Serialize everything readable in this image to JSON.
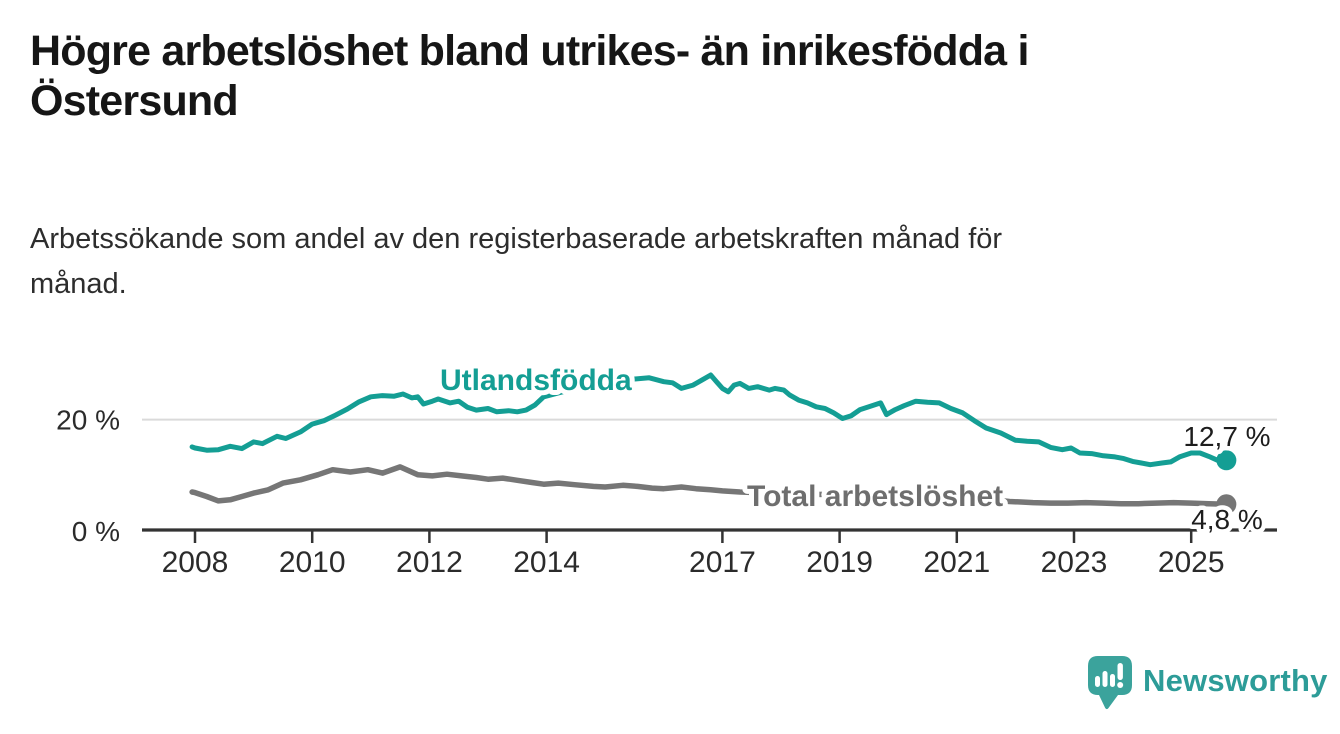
{
  "header": {
    "title_lines": [
      "Högre arbetslöshet bland utrikes- än inrikesfödda i",
      "Östersund"
    ],
    "subtitle_lines": [
      "Arbetssökande som andel av den registerbaserade arbetskraften månad för",
      "månad."
    ]
  },
  "branding": {
    "name": "Newsworthy",
    "icon": "speech-bubble-bar-chart-icon",
    "icon_color": "#3ba39c",
    "text_color": "#2d9c98"
  },
  "chart_data": {
    "type": "line",
    "unit": "%",
    "grid": "single horizontal gridline at 20 %",
    "legend_position": "inline labels on lines",
    "xlim": [
      2007.9,
      2025.7
    ],
    "ylim": [
      0,
      30
    ],
    "x_ticks": [
      {
        "label": "2008",
        "year": 2008
      },
      {
        "label": "2010",
        "year": 2010
      },
      {
        "label": "2012",
        "year": 2012
      },
      {
        "label": "2014",
        "year": 2014
      },
      {
        "label": "2017",
        "year": 2017
      },
      {
        "label": "2019",
        "year": 2019
      },
      {
        "label": "2021",
        "year": 2021
      },
      {
        "label": "2023",
        "year": 2023
      },
      {
        "label": "2025",
        "year": 2025
      }
    ],
    "y_ticks": [
      {
        "label": "0 %",
        "value": 0
      },
      {
        "label": "20 %",
        "value": 20
      }
    ],
    "series": [
      {
        "name": "Utlandsfödda",
        "color": "#149e94",
        "label_color": "#149e94",
        "end_label": "12,7 %",
        "end_value": 12.7,
        "points": [
          [
            2007.95,
            15.1
          ],
          [
            2008.0,
            14.9
          ],
          [
            2008.2,
            14.5
          ],
          [
            2008.4,
            14.6
          ],
          [
            2008.6,
            15.2
          ],
          [
            2008.8,
            14.8
          ],
          [
            2009.0,
            16.0
          ],
          [
            2009.15,
            15.7
          ],
          [
            2009.4,
            17.0
          ],
          [
            2009.55,
            16.6
          ],
          [
            2009.8,
            17.8
          ],
          [
            2010.0,
            19.2
          ],
          [
            2010.2,
            19.8
          ],
          [
            2010.4,
            20.8
          ],
          [
            2010.6,
            21.9
          ],
          [
            2010.8,
            23.2
          ],
          [
            2011.0,
            24.1
          ],
          [
            2011.2,
            24.3
          ],
          [
            2011.4,
            24.2
          ],
          [
            2011.55,
            24.6
          ],
          [
            2011.7,
            23.9
          ],
          [
            2011.8,
            24.1
          ],
          [
            2011.9,
            22.8
          ],
          [
            2012.05,
            23.3
          ],
          [
            2012.15,
            23.7
          ],
          [
            2012.35,
            23.0
          ],
          [
            2012.5,
            23.3
          ],
          [
            2012.65,
            22.2
          ],
          [
            2012.8,
            21.7
          ],
          [
            2013.0,
            22.0
          ],
          [
            2013.15,
            21.4
          ],
          [
            2013.35,
            21.6
          ],
          [
            2013.5,
            21.4
          ],
          [
            2013.65,
            21.7
          ],
          [
            2013.8,
            22.6
          ],
          [
            2013.95,
            24.1
          ],
          [
            2014.2,
            24.8
          ],
          [
            2014.5,
            25.6
          ],
          [
            2014.8,
            26.3
          ],
          [
            2015.1,
            26.8
          ],
          [
            2015.4,
            27.2
          ],
          [
            2015.75,
            27.5
          ],
          [
            2016.0,
            26.8
          ],
          [
            2016.15,
            26.6
          ],
          [
            2016.3,
            25.6
          ],
          [
            2016.5,
            26.2
          ],
          [
            2016.65,
            27.1
          ],
          [
            2016.8,
            28.0
          ],
          [
            2016.9,
            26.8
          ],
          [
            2017.0,
            25.6
          ],
          [
            2017.1,
            25.0
          ],
          [
            2017.2,
            26.2
          ],
          [
            2017.3,
            26.5
          ],
          [
            2017.45,
            25.6
          ],
          [
            2017.6,
            25.9
          ],
          [
            2017.8,
            25.3
          ],
          [
            2017.9,
            25.6
          ],
          [
            2018.05,
            25.3
          ],
          [
            2018.15,
            24.4
          ],
          [
            2018.3,
            23.5
          ],
          [
            2018.45,
            23.0
          ],
          [
            2018.6,
            22.3
          ],
          [
            2018.75,
            22.0
          ],
          [
            2018.9,
            21.2
          ],
          [
            2019.05,
            20.2
          ],
          [
            2019.2,
            20.7
          ],
          [
            2019.35,
            21.8
          ],
          [
            2019.5,
            22.3
          ],
          [
            2019.7,
            23.0
          ],
          [
            2019.8,
            20.9
          ],
          [
            2019.95,
            21.8
          ],
          [
            2020.1,
            22.5
          ],
          [
            2020.3,
            23.3
          ],
          [
            2020.5,
            23.1
          ],
          [
            2020.7,
            23.0
          ],
          [
            2020.9,
            22.0
          ],
          [
            2021.1,
            21.2
          ],
          [
            2021.3,
            19.8
          ],
          [
            2021.5,
            18.5
          ],
          [
            2021.75,
            17.6
          ],
          [
            2022.0,
            16.3
          ],
          [
            2022.2,
            16.1
          ],
          [
            2022.4,
            16.0
          ],
          [
            2022.6,
            15.0
          ],
          [
            2022.8,
            14.6
          ],
          [
            2022.95,
            14.9
          ],
          [
            2023.1,
            14.0
          ],
          [
            2023.3,
            13.9
          ],
          [
            2023.5,
            13.5
          ],
          [
            2023.7,
            13.3
          ],
          [
            2023.85,
            13.0
          ],
          [
            2024.0,
            12.5
          ],
          [
            2024.15,
            12.2
          ],
          [
            2024.3,
            11.9
          ],
          [
            2024.5,
            12.2
          ],
          [
            2024.65,
            12.4
          ],
          [
            2024.8,
            13.3
          ],
          [
            2025.0,
            14.0
          ],
          [
            2025.15,
            14.0
          ],
          [
            2025.3,
            13.4
          ],
          [
            2025.45,
            12.7
          ],
          [
            2025.55,
            12.4
          ],
          [
            2025.6,
            12.7
          ]
        ]
      },
      {
        "name": "Total arbetslöshet",
        "color": "#767676",
        "label_color": "#6e6e6e",
        "end_label": "4,8 %",
        "end_value": 4.8,
        "points": [
          [
            2007.95,
            7.0
          ],
          [
            2008.0,
            6.9
          ],
          [
            2008.2,
            6.2
          ],
          [
            2008.4,
            5.4
          ],
          [
            2008.6,
            5.6
          ],
          [
            2008.8,
            6.2
          ],
          [
            2009.0,
            6.8
          ],
          [
            2009.25,
            7.4
          ],
          [
            2009.5,
            8.6
          ],
          [
            2009.8,
            9.2
          ],
          [
            2010.1,
            10.1
          ],
          [
            2010.35,
            11.0
          ],
          [
            2010.65,
            10.6
          ],
          [
            2010.95,
            11.0
          ],
          [
            2011.2,
            10.4
          ],
          [
            2011.5,
            11.5
          ],
          [
            2011.8,
            10.1
          ],
          [
            2012.05,
            9.9
          ],
          [
            2012.3,
            10.2
          ],
          [
            2012.55,
            9.9
          ],
          [
            2012.8,
            9.6
          ],
          [
            2013.0,
            9.3
          ],
          [
            2013.25,
            9.5
          ],
          [
            2013.5,
            9.1
          ],
          [
            2013.75,
            8.7
          ],
          [
            2013.95,
            8.4
          ],
          [
            2014.2,
            8.6
          ],
          [
            2014.5,
            8.3
          ],
          [
            2014.8,
            8.0
          ],
          [
            2015.0,
            7.9
          ],
          [
            2015.3,
            8.2
          ],
          [
            2015.55,
            8.0
          ],
          [
            2015.8,
            7.7
          ],
          [
            2016.0,
            7.6
          ],
          [
            2016.3,
            7.9
          ],
          [
            2016.55,
            7.6
          ],
          [
            2016.8,
            7.4
          ],
          [
            2017.0,
            7.2
          ],
          [
            2017.3,
            7.0
          ],
          [
            2017.6,
            6.9
          ],
          [
            2018.0,
            6.8
          ],
          [
            2018.5,
            6.6
          ],
          [
            2019.0,
            6.5
          ],
          [
            2019.5,
            6.6
          ],
          [
            2020.0,
            7.0
          ],
          [
            2020.4,
            6.8
          ],
          [
            2020.8,
            6.4
          ],
          [
            2021.2,
            6.0
          ],
          [
            2021.6,
            5.6
          ],
          [
            2021.9,
            5.3
          ],
          [
            2022.1,
            5.2
          ],
          [
            2022.3,
            5.1
          ],
          [
            2022.6,
            5.0
          ],
          [
            2022.9,
            5.0
          ],
          [
            2023.2,
            5.1
          ],
          [
            2023.5,
            5.0
          ],
          [
            2023.8,
            4.9
          ],
          [
            2024.1,
            4.9
          ],
          [
            2024.4,
            5.0
          ],
          [
            2024.7,
            5.1
          ],
          [
            2025.0,
            5.0
          ],
          [
            2025.3,
            4.9
          ],
          [
            2025.6,
            4.8
          ]
        ]
      }
    ]
  }
}
